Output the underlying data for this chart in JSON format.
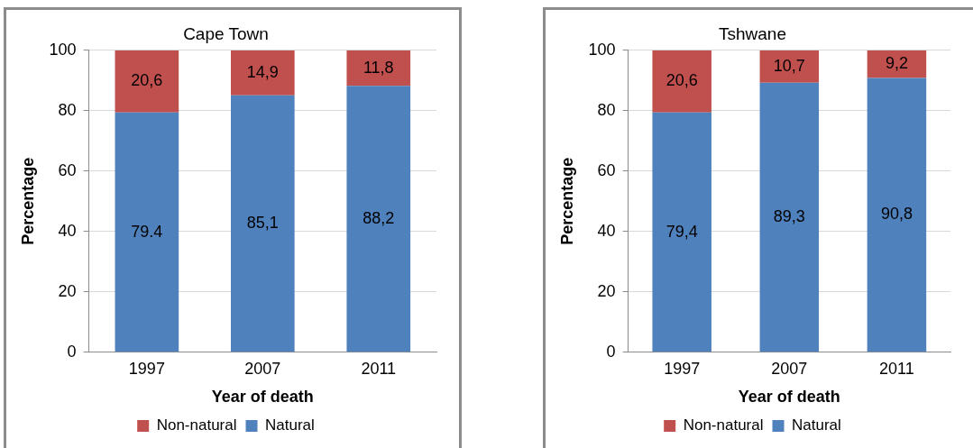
{
  "chart_data": [
    {
      "type": "bar",
      "title": "Cape Town",
      "xlabel": "Year of death",
      "ylabel": "Percentage",
      "categories": [
        "1997",
        "2007",
        "2011"
      ],
      "stacked": true,
      "ylim": [
        0,
        100
      ],
      "yticks": [
        0,
        20,
        40,
        60,
        80,
        100
      ],
      "grid": "y",
      "legend": "bottom",
      "series": [
        {
          "name": "Natural",
          "color": "#4f81bd",
          "values": [
            79.4,
            85.1,
            88.2
          ],
          "value_labels": [
            "79.4",
            "85,1",
            "88,2"
          ]
        },
        {
          "name": "Non-natural",
          "color": "#c0504d",
          "values": [
            20.6,
            14.9,
            11.8
          ],
          "value_labels": [
            "20,6",
            "14,9",
            "11,8"
          ]
        }
      ]
    },
    {
      "type": "bar",
      "title": "Tshwane",
      "xlabel": "Year of death",
      "ylabel": "Percentage",
      "categories": [
        "1997",
        "2007",
        "2011"
      ],
      "stacked": true,
      "ylim": [
        0,
        100
      ],
      "yticks": [
        0,
        20,
        40,
        60,
        80,
        100
      ],
      "grid": "y",
      "legend": "bottom",
      "series": [
        {
          "name": "Natural",
          "color": "#4f81bd",
          "values": [
            79.4,
            89.3,
            90.8
          ],
          "value_labels": [
            "79,4",
            "89,3",
            "90,8"
          ]
        },
        {
          "name": "Non-natural",
          "color": "#c0504d",
          "values": [
            20.6,
            10.7,
            9.2
          ],
          "value_labels": [
            "20,6",
            "10,7",
            "9,2"
          ]
        }
      ]
    }
  ]
}
